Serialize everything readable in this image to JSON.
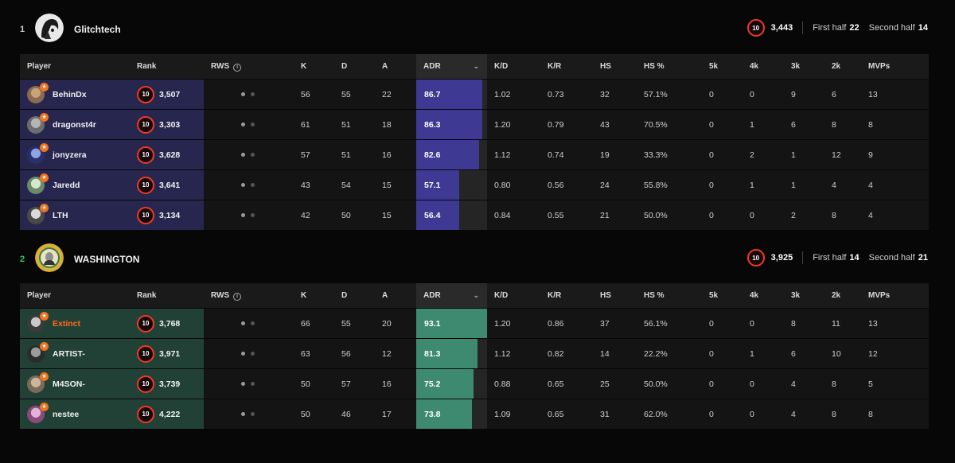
{
  "colors": {
    "team1_accent": "#27264e",
    "team1_bar": "#3e3a94",
    "team2_accent": "#224136",
    "team2_bar": "#3e8a70",
    "rank_ring": "#ee3b24",
    "place2": "#38c76b"
  },
  "columns": [
    "Player",
    "Rank",
    "RWS",
    "K",
    "D",
    "A",
    "ADR",
    "K/D",
    "K/R",
    "HS",
    "HS %",
    "5k",
    "4k",
    "3k",
    "2k",
    "MVPs"
  ],
  "teams": [
    {
      "place": "1",
      "name": "Glitchtech",
      "elo": "3,443",
      "first_half_label": "First half",
      "first_half": "22",
      "second_half_label": "Second half",
      "second_half": "14",
      "players": [
        {
          "name": "BehinDx",
          "level": "10",
          "elo": "3,507",
          "k": "56",
          "d": "55",
          "a": "22",
          "adr": "86.7",
          "adr_fill": 0.93,
          "kd": "1.02",
          "kr": "0.73",
          "hs": "32",
          "hsp": "57.1%",
          "k5": "0",
          "k4": "0",
          "k3": "9",
          "k2": "6",
          "mvps": "13"
        },
        {
          "name": "dragonst4r",
          "level": "10",
          "elo": "3,303",
          "k": "61",
          "d": "51",
          "a": "18",
          "adr": "86.3",
          "adr_fill": 0.93,
          "kd": "1.20",
          "kr": "0.79",
          "hs": "43",
          "hsp": "70.5%",
          "k5": "0",
          "k4": "1",
          "k3": "6",
          "k2": "8",
          "mvps": "8"
        },
        {
          "name": "jonyzera",
          "level": "10",
          "elo": "3,628",
          "k": "57",
          "d": "51",
          "a": "16",
          "adr": "82.6",
          "adr_fill": 0.89,
          "kd": "1.12",
          "kr": "0.74",
          "hs": "19",
          "hsp": "33.3%",
          "k5": "0",
          "k4": "2",
          "k3": "1",
          "k2": "12",
          "mvps": "9"
        },
        {
          "name": "Jaredd",
          "level": "10",
          "elo": "3,641",
          "k": "43",
          "d": "54",
          "a": "15",
          "adr": "57.1",
          "adr_fill": 0.61,
          "kd": "0.80",
          "kr": "0.56",
          "hs": "24",
          "hsp": "55.8%",
          "k5": "0",
          "k4": "1",
          "k3": "1",
          "k2": "4",
          "mvps": "4"
        },
        {
          "name": "LTH",
          "level": "10",
          "elo": "3,134",
          "k": "42",
          "d": "50",
          "a": "15",
          "adr": "56.4",
          "adr_fill": 0.61,
          "kd": "0.84",
          "kr": "0.55",
          "hs": "21",
          "hsp": "50.0%",
          "k5": "0",
          "k4": "0",
          "k3": "2",
          "k2": "8",
          "mvps": "4"
        }
      ]
    },
    {
      "place": "2",
      "name": "WASHINGTON",
      "elo": "3,925",
      "first_half_label": "First half",
      "first_half": "14",
      "second_half_label": "Second half",
      "second_half": "21",
      "players": [
        {
          "name": "Extinct",
          "level": "10",
          "elo": "3,768",
          "k": "66",
          "d": "55",
          "a": "20",
          "adr": "93.1",
          "adr_fill": 1.0,
          "kd": "1.20",
          "kr": "0.86",
          "hs": "37",
          "hsp": "56.1%",
          "k5": "0",
          "k4": "0",
          "k3": "8",
          "k2": "11",
          "mvps": "13"
        },
        {
          "name": "ARTIST-",
          "level": "10",
          "elo": "3,971",
          "k": "63",
          "d": "56",
          "a": "12",
          "adr": "81.3",
          "adr_fill": 0.87,
          "kd": "1.12",
          "kr": "0.82",
          "hs": "14",
          "hsp": "22.2%",
          "k5": "0",
          "k4": "1",
          "k3": "6",
          "k2": "10",
          "mvps": "12"
        },
        {
          "name": "M4SON-",
          "level": "10",
          "elo": "3,739",
          "k": "50",
          "d": "57",
          "a": "16",
          "adr": "75.2",
          "adr_fill": 0.81,
          "kd": "0.88",
          "kr": "0.65",
          "hs": "25",
          "hsp": "50.0%",
          "k5": "0",
          "k4": "0",
          "k3": "4",
          "k2": "8",
          "mvps": "5"
        },
        {
          "name": "nestee",
          "level": "10",
          "elo": "4,222",
          "k": "50",
          "d": "46",
          "a": "17",
          "adr": "73.8",
          "adr_fill": 0.79,
          "kd": "1.09",
          "kr": "0.65",
          "hs": "31",
          "hsp": "62.0%",
          "k5": "0",
          "k4": "0",
          "k3": "4",
          "k2": "8",
          "mvps": "8"
        }
      ]
    }
  ]
}
